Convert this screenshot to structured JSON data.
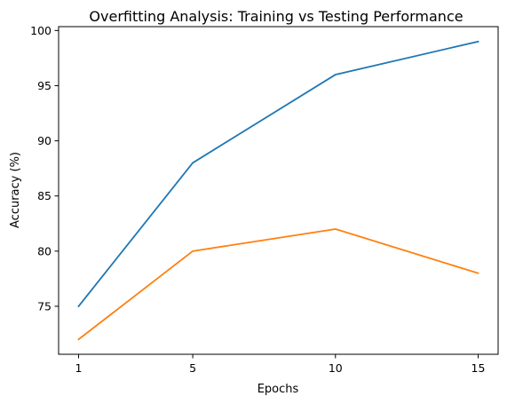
{
  "chart_data": {
    "type": "line",
    "title": "Overfitting Analysis: Training vs Testing Performance",
    "xlabel": "Epochs",
    "ylabel": "Accuracy (%)",
    "x": [
      1,
      5,
      10,
      15
    ],
    "x_ticks": [
      1,
      5,
      10,
      15
    ],
    "y_ticks": [
      75,
      80,
      85,
      90,
      95,
      100
    ],
    "xlim": [
      0.3,
      15.7
    ],
    "ylim": [
      70.65,
      100.35
    ],
    "grid": false,
    "series": [
      {
        "values": [
          75,
          88,
          96,
          99
        ],
        "color": "#1f77b4"
      },
      {
        "values": [
          72,
          80,
          82,
          78
        ],
        "color": "#ff7f0e"
      }
    ]
  }
}
